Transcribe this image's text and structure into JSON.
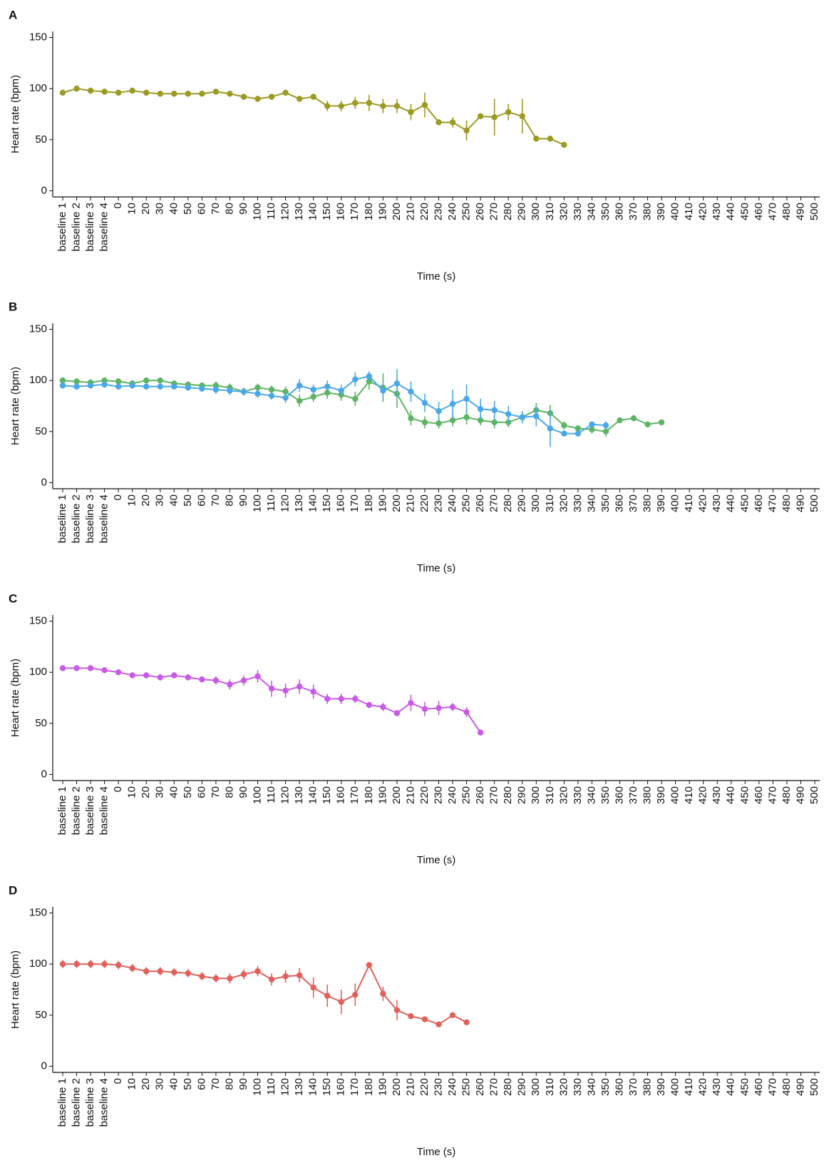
{
  "chart_data": [
    {
      "type": "line",
      "title": "A",
      "y_label": "Heart rate (bpm)",
      "x_label": "Time (s)",
      "categories": [
        "baseline 1",
        "baseline 2",
        "baseline 3",
        "baseline 4",
        "0",
        "10",
        "20",
        "30",
        "40",
        "50",
        "60",
        "70",
        "80",
        "90",
        "100",
        "110",
        "120",
        "130",
        "140",
        "150",
        "160",
        "170",
        "180",
        "190",
        "200",
        "210",
        "220",
        "230",
        "240",
        "250",
        "260",
        "270",
        "280",
        "290",
        "300",
        "310",
        "320",
        "330",
        "340",
        "350",
        "360",
        "370",
        "380",
        "390",
        "400",
        "410",
        "420",
        "430",
        "440",
        "450",
        "460",
        "470",
        "480",
        "490",
        "500"
      ],
      "ylim": [
        -6,
        156
      ],
      "yticks": [
        0,
        50,
        100,
        150
      ],
      "series": [
        {
          "color": "#9c9a22",
          "values": [
            96,
            100,
            98,
            97,
            96,
            98,
            96,
            95,
            95,
            95,
            95,
            97,
            95,
            92,
            90,
            92,
            96,
            90,
            92,
            83,
            83,
            86,
            86,
            83,
            83,
            77,
            84,
            67,
            67,
            59,
            73,
            72,
            77,
            73,
            51,
            51,
            45,
            null,
            null,
            null,
            null,
            null,
            null,
            null,
            null,
            null,
            null,
            null,
            null,
            null,
            null,
            null,
            null,
            null,
            null
          ],
          "errors": [
            3,
            3,
            3,
            3,
            3,
            3,
            3,
            3,
            3,
            3,
            2,
            2,
            3,
            3,
            3,
            3,
            3,
            3,
            3,
            5,
            5,
            6,
            8,
            7,
            7,
            8,
            12,
            3,
            5,
            10,
            null,
            18,
            8,
            17,
            null,
            null,
            null,
            null,
            null,
            null,
            null,
            null,
            null,
            null,
            null,
            null,
            null,
            null,
            null,
            null,
            null,
            null,
            null,
            null,
            null
          ]
        }
      ]
    },
    {
      "type": "line",
      "title": "B",
      "y_label": "Heart rate (bpm)",
      "x_label": "Time (s)",
      "categories": [
        "baseline 1",
        "baseline 2",
        "baseline 3",
        "baseline 4",
        "0",
        "10",
        "20",
        "30",
        "40",
        "50",
        "60",
        "70",
        "80",
        "90",
        "100",
        "110",
        "120",
        "130",
        "140",
        "150",
        "160",
        "170",
        "180",
        "190",
        "200",
        "210",
        "220",
        "230",
        "240",
        "250",
        "260",
        "270",
        "280",
        "290",
        "300",
        "310",
        "320",
        "330",
        "340",
        "350",
        "360",
        "370",
        "380",
        "390",
        "400",
        "410",
        "420",
        "430",
        "440",
        "450",
        "460",
        "470",
        "480",
        "490",
        "500"
      ],
      "ylim": [
        -6,
        156
      ],
      "yticks": [
        0,
        50,
        100,
        150
      ],
      "series": [
        {
          "color": "#5db463",
          "values": [
            100,
            99,
            98,
            100,
            99,
            97,
            100,
            100,
            97,
            96,
            95,
            95,
            93,
            89,
            93,
            91,
            89,
            80,
            84,
            88,
            86,
            82,
            99,
            93,
            87,
            63,
            59,
            58,
            61,
            64,
            61,
            59,
            59,
            64,
            71,
            68,
            56,
            53,
            52,
            50,
            61,
            63,
            57,
            59,
            null,
            null,
            null,
            null,
            null,
            null,
            null,
            null,
            null,
            null,
            null
          ],
          "errors": [
            3,
            3,
            3,
            3,
            3,
            3,
            3,
            3,
            3,
            3,
            3,
            4,
            4,
            4,
            4,
            4,
            5,
            6,
            5,
            6,
            6,
            7,
            8,
            14,
            14,
            7,
            6,
            5,
            6,
            7,
            5,
            6,
            5,
            6,
            7,
            8,
            4,
            3,
            4,
            5,
            null,
            null,
            null,
            null,
            null,
            null,
            null,
            null,
            null,
            null,
            null,
            null,
            null,
            null,
            null
          ]
        },
        {
          "color": "#4aa8e8",
          "values": [
            95,
            94,
            95,
            96,
            94,
            95,
            94,
            94,
            94,
            93,
            92,
            91,
            90,
            89,
            87,
            85,
            83,
            95,
            91,
            94,
            90,
            101,
            104,
            90,
            97,
            89,
            78,
            70,
            77,
            82,
            72,
            71,
            67,
            64,
            65,
            53,
            48,
            48,
            57,
            56,
            null,
            null,
            null,
            null,
            null,
            null,
            null,
            null,
            null,
            null,
            null,
            null,
            null,
            null,
            null
          ],
          "errors": [
            3,
            3,
            3,
            3,
            3,
            3,
            3,
            3,
            3,
            3,
            3,
            4,
            4,
            4,
            4,
            4,
            5,
            6,
            5,
            6,
            6,
            7,
            5,
            8,
            14,
            10,
            9,
            9,
            14,
            14,
            10,
            9,
            8,
            6,
            10,
            18,
            3,
            2,
            2,
            4,
            null,
            null,
            null,
            null,
            null,
            null,
            null,
            null,
            null,
            null,
            null,
            null,
            null,
            null,
            null
          ]
        }
      ]
    },
    {
      "type": "line",
      "title": "C",
      "y_label": "Heart rate (bpm)",
      "x_label": "Time (s)",
      "categories": [
        "baseline 1",
        "baseline 2",
        "baseline 3",
        "baseline 4",
        "0",
        "10",
        "20",
        "30",
        "40",
        "50",
        "60",
        "70",
        "80",
        "90",
        "100",
        "110",
        "120",
        "130",
        "140",
        "150",
        "160",
        "170",
        "180",
        "190",
        "200",
        "210",
        "220",
        "230",
        "240",
        "250",
        "260",
        "270",
        "280",
        "290",
        "300",
        "310",
        "320",
        "330",
        "340",
        "350",
        "360",
        "370",
        "380",
        "390",
        "400",
        "410",
        "420",
        "430",
        "440",
        "450",
        "460",
        "470",
        "480",
        "490",
        "500"
      ],
      "ylim": [
        -6,
        156
      ],
      "yticks": [
        0,
        50,
        100,
        150
      ],
      "series": [
        {
          "color": "#c95ae6",
          "values": [
            104,
            104,
            104,
            102,
            100,
            97,
            97,
            95,
            97,
            95,
            93,
            92,
            88,
            92,
            96,
            84,
            82,
            86,
            81,
            74,
            74,
            74,
            68,
            66,
            60,
            70,
            64,
            65,
            66,
            61,
            41,
            null,
            null,
            null,
            null,
            null,
            null,
            null,
            null,
            null,
            null,
            null,
            null,
            null,
            null,
            null,
            null,
            null,
            null,
            null,
            null,
            null,
            null,
            null,
            null
          ],
          "errors": [
            2,
            2,
            2,
            2,
            2,
            2,
            2,
            3,
            2,
            2,
            3,
            4,
            5,
            5,
            6,
            8,
            7,
            7,
            7,
            5,
            5,
            4,
            3,
            4,
            3,
            8,
            7,
            7,
            4,
            5,
            null,
            null,
            null,
            null,
            null,
            null,
            null,
            null,
            null,
            null,
            null,
            null,
            null,
            null,
            null,
            null,
            null,
            null,
            null,
            null,
            null,
            null,
            null,
            null,
            null
          ]
        }
      ]
    },
    {
      "type": "line",
      "title": "D",
      "y_label": "Heart rate (bpm)",
      "x_label": "Time (s)",
      "categories": [
        "baseline 1",
        "baseline 2",
        "baseline 3",
        "baseline 4",
        "0",
        "10",
        "20",
        "30",
        "40",
        "50",
        "60",
        "70",
        "80",
        "90",
        "100",
        "110",
        "120",
        "130",
        "140",
        "150",
        "160",
        "170",
        "180",
        "190",
        "200",
        "210",
        "220",
        "230",
        "240",
        "250",
        "260",
        "270",
        "280",
        "290",
        "300",
        "310",
        "320",
        "330",
        "340",
        "350",
        "360",
        "370",
        "380",
        "390",
        "400",
        "410",
        "420",
        "430",
        "440",
        "450",
        "460",
        "470",
        "480",
        "490",
        "500"
      ],
      "ylim": [
        -6,
        156
      ],
      "yticks": [
        0,
        50,
        100,
        150
      ],
      "series": [
        {
          "color": "#e0615b",
          "values": [
            100,
            100,
            100,
            100,
            99,
            96,
            93,
            93,
            92,
            91,
            88,
            86,
            86,
            90,
            93,
            85,
            88,
            89,
            77,
            69,
            63,
            70,
            99,
            71,
            55,
            49,
            46,
            41,
            50,
            43,
            null,
            null,
            null,
            null,
            null,
            null,
            null,
            null,
            null,
            null,
            null,
            null,
            null,
            null,
            null,
            null,
            null,
            null,
            null,
            null,
            null,
            null,
            null,
            null,
            null
          ],
          "errors": [
            4,
            4,
            4,
            4,
            4,
            4,
            4,
            4,
            4,
            4,
            4,
            4,
            5,
            5,
            5,
            6,
            6,
            7,
            10,
            11,
            12,
            11,
            null,
            7,
            10,
            null,
            null,
            null,
            null,
            null,
            null,
            null,
            null,
            null,
            null,
            null,
            null,
            null,
            null,
            null,
            null,
            null,
            null,
            null,
            null,
            null,
            null,
            null,
            null,
            null,
            null,
            null,
            null,
            null,
            null
          ]
        }
      ]
    }
  ]
}
